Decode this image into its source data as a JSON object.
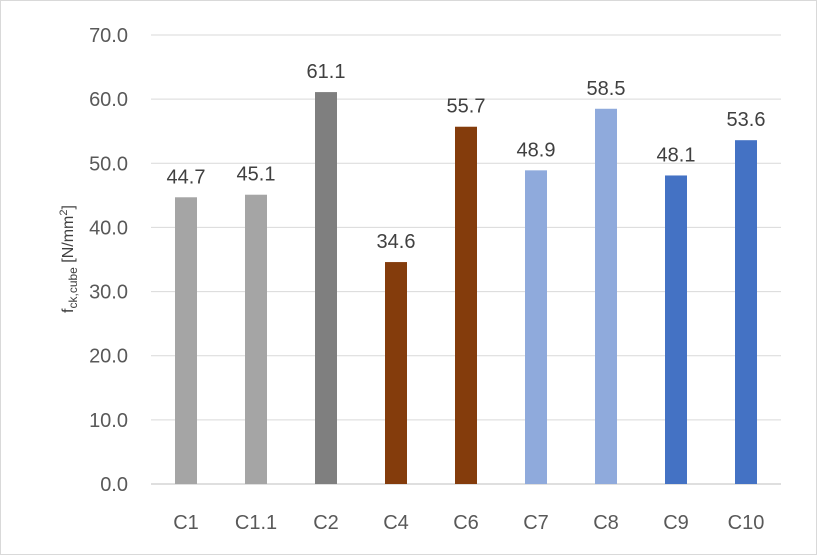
{
  "chart_data": {
    "type": "bar",
    "title": "",
    "xlabel": "",
    "ylabel": {
      "base": "f",
      "subscript": "ck,cube",
      "unit": " [N/mm",
      "sup": "2",
      "close": "]"
    },
    "ylim": [
      0,
      70
    ],
    "yticks": [
      "0.0",
      "10.0",
      "20.0",
      "30.0",
      "40.0",
      "50.0",
      "60.0",
      "70.0"
    ],
    "grid": true,
    "legend": "none",
    "categories": [
      "C1",
      "C1.1",
      "C2",
      "C4",
      "C6",
      "C7",
      "C8",
      "C9",
      "C10"
    ],
    "values": [
      44.7,
      45.1,
      61.1,
      34.6,
      55.7,
      48.9,
      58.5,
      48.1,
      53.6
    ],
    "data_labels": [
      "44.7",
      "45.1",
      "61.1",
      "34.6",
      "55.7",
      "48.9",
      "58.5",
      "48.1",
      "53.6"
    ],
    "colors": [
      "#a5a5a5",
      "#a5a5a5",
      "#7f7f7f",
      "#843c0c",
      "#843c0c",
      "#8faadc",
      "#8faadc",
      "#4472c4",
      "#4472c4"
    ]
  }
}
